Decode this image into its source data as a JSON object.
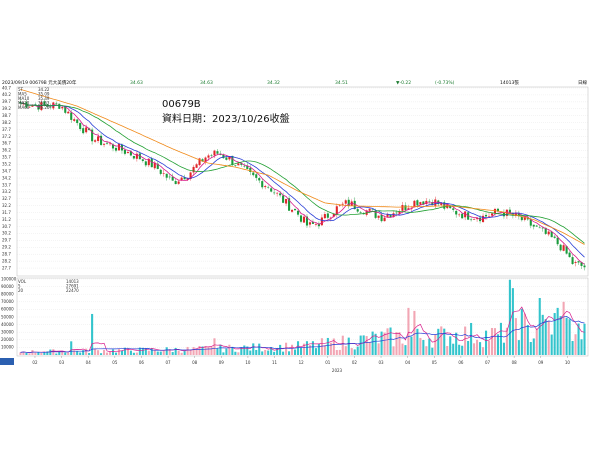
{
  "colors": {
    "up": "#e0262a",
    "down": "#1a9b3c",
    "ma5": "#d81c8c",
    "ma10": "#2a3fd6",
    "ma20": "#22a033",
    "ma60": "#f08a1a",
    "vol_up": "#f2a6b4",
    "vol_down": "#33c4cc",
    "vol_ma5": "#d81c8c",
    "vol_ma20": "#2a3fd6",
    "grid": "#dadada",
    "bar_selected": "#2b5fb0"
  },
  "header": {
    "date_symbol": "2023/09/19 00679B 元大美債20年",
    "open": "34.63",
    "high": "34.63",
    "low": "34.32",
    "close": "34.51",
    "change": "▼-0.22",
    "change_pct": "(-0.73%)",
    "volume": "14013張",
    "period": "日線"
  },
  "overlay": {
    "title": "00679B",
    "date_line": "資料日期：2023/10/26收盤"
  },
  "legend_price": {
    "series": [
      {
        "label": "5T",
        "value": "34.22"
      },
      {
        "label": "MA5",
        "value": "35.09"
      },
      {
        "label": "MA10",
        "value": "35.49"
      },
      {
        "label": "MA20",
        "value": "35.63"
      },
      {
        "label": "MA60",
        "value": "36.20"
      }
    ]
  },
  "legend_volume": {
    "series": [
      {
        "label": "VOL",
        "value": "14013"
      },
      {
        "label": "5",
        "value": "27691"
      },
      {
        "label": "20",
        "value": "22470"
      }
    ]
  },
  "chart_data": {
    "type": "candlestick",
    "price_axis": {
      "ylim": [
        27.2,
        40.7
      ],
      "ticks": [
        "40.7",
        "40.2",
        "39.7",
        "39.2",
        "38.7",
        "38.2",
        "37.7",
        "37.2",
        "36.7",
        "36.2",
        "35.7",
        "35.2",
        "34.7",
        "34.2",
        "33.7",
        "33.2",
        "32.7",
        "32.2",
        "31.7",
        "31.2",
        "30.7",
        "30.2",
        "29.7",
        "29.2",
        "28.7",
        "28.2",
        "27.7"
      ]
    },
    "volume_axis": {
      "ylim": [
        0,
        100000
      ],
      "ticks": [
        "100000",
        "90000",
        "80000",
        "70000",
        "60000",
        "50000",
        "40000",
        "30000",
        "20000",
        "10000"
      ]
    },
    "x_axis": {
      "tick_labels": [
        "02",
        "03",
        "04",
        "05",
        "06",
        "07",
        "08",
        "09",
        "10",
        "11",
        "12",
        "01",
        "02",
        "03",
        "04",
        "05",
        "06",
        "07",
        "08",
        "09",
        "10"
      ],
      "year_label": "2023"
    },
    "price_keypoints": [
      {
        "t": 0.0,
        "v": 39.6
      },
      {
        "t": 0.04,
        "v": 39.4
      },
      {
        "t": 0.07,
        "v": 39.5
      },
      {
        "t": 0.1,
        "v": 38.2
      },
      {
        "t": 0.13,
        "v": 37.0
      },
      {
        "t": 0.17,
        "v": 36.4
      },
      {
        "t": 0.21,
        "v": 35.7
      },
      {
        "t": 0.24,
        "v": 35.0
      },
      {
        "t": 0.27,
        "v": 33.9
      },
      {
        "t": 0.3,
        "v": 34.6
      },
      {
        "t": 0.33,
        "v": 35.8
      },
      {
        "t": 0.35,
        "v": 36.0
      },
      {
        "t": 0.37,
        "v": 35.6
      },
      {
        "t": 0.41,
        "v": 34.3
      },
      {
        "t": 0.44,
        "v": 33.6
      },
      {
        "t": 0.47,
        "v": 32.4
      },
      {
        "t": 0.49,
        "v": 31.7
      },
      {
        "t": 0.51,
        "v": 30.7
      },
      {
        "t": 0.53,
        "v": 31.0
      },
      {
        "t": 0.56,
        "v": 32.0
      },
      {
        "t": 0.58,
        "v": 32.4
      },
      {
        "t": 0.61,
        "v": 31.9
      },
      {
        "t": 0.64,
        "v": 31.4
      },
      {
        "t": 0.67,
        "v": 31.9
      },
      {
        "t": 0.7,
        "v": 32.5
      },
      {
        "t": 0.73,
        "v": 32.6
      },
      {
        "t": 0.76,
        "v": 31.9
      },
      {
        "t": 0.79,
        "v": 31.5
      },
      {
        "t": 0.82,
        "v": 31.4
      },
      {
        "t": 0.85,
        "v": 31.8
      },
      {
        "t": 0.88,
        "v": 31.4
      },
      {
        "t": 0.91,
        "v": 30.7
      },
      {
        "t": 0.94,
        "v": 29.9
      },
      {
        "t": 0.96,
        "v": 29.2
      },
      {
        "t": 0.98,
        "v": 28.0
      },
      {
        "t": 1.0,
        "v": 27.8
      }
    ],
    "ma60_keypoints": [
      {
        "t": 0.0,
        "v": 40.6
      },
      {
        "t": 0.1,
        "v": 39.4
      },
      {
        "t": 0.2,
        "v": 37.6
      },
      {
        "t": 0.27,
        "v": 36.3
      },
      {
        "t": 0.33,
        "v": 35.3
      },
      {
        "t": 0.38,
        "v": 35.0
      },
      {
        "t": 0.44,
        "v": 34.4
      },
      {
        "t": 0.49,
        "v": 33.3
      },
      {
        "t": 0.54,
        "v": 32.4
      },
      {
        "t": 0.58,
        "v": 32.2
      },
      {
        "t": 0.67,
        "v": 32.1
      },
      {
        "t": 0.76,
        "v": 32.2
      },
      {
        "t": 0.85,
        "v": 31.8
      },
      {
        "t": 0.91,
        "v": 31.2
      },
      {
        "t": 0.96,
        "v": 30.3
      },
      {
        "t": 1.0,
        "v": 29.4
      }
    ],
    "volume_keypoints": [
      {
        "t": 0.0,
        "v": 4000
      },
      {
        "t": 0.1,
        "v": 5000
      },
      {
        "t": 0.2,
        "v": 6000
      },
      {
        "t": 0.3,
        "v": 7000
      },
      {
        "t": 0.4,
        "v": 9000
      },
      {
        "t": 0.5,
        "v": 11000
      },
      {
        "t": 0.55,
        "v": 14000
      },
      {
        "t": 0.6,
        "v": 18000
      },
      {
        "t": 0.65,
        "v": 22000
      },
      {
        "t": 0.7,
        "v": 22000
      },
      {
        "t": 0.75,
        "v": 24000
      },
      {
        "t": 0.8,
        "v": 26000
      },
      {
        "t": 0.85,
        "v": 24000
      },
      {
        "t": 0.88,
        "v": 50000
      },
      {
        "t": 0.9,
        "v": 28000
      },
      {
        "t": 0.95,
        "v": 40000
      },
      {
        "t": 1.0,
        "v": 26000
      }
    ],
    "volume_spikes": [
      {
        "t": 0.127,
        "v": 54000
      },
      {
        "t": 0.088,
        "v": 18000
      },
      {
        "t": 0.345,
        "v": 22000
      },
      {
        "t": 0.69,
        "v": 62000
      },
      {
        "t": 0.7,
        "v": 58000
      },
      {
        "t": 0.87,
        "v": 99000
      },
      {
        "t": 0.875,
        "v": 88000
      },
      {
        "t": 0.92,
        "v": 75000
      },
      {
        "t": 0.95,
        "v": 62000
      },
      {
        "t": 0.965,
        "v": 70000
      }
    ]
  }
}
